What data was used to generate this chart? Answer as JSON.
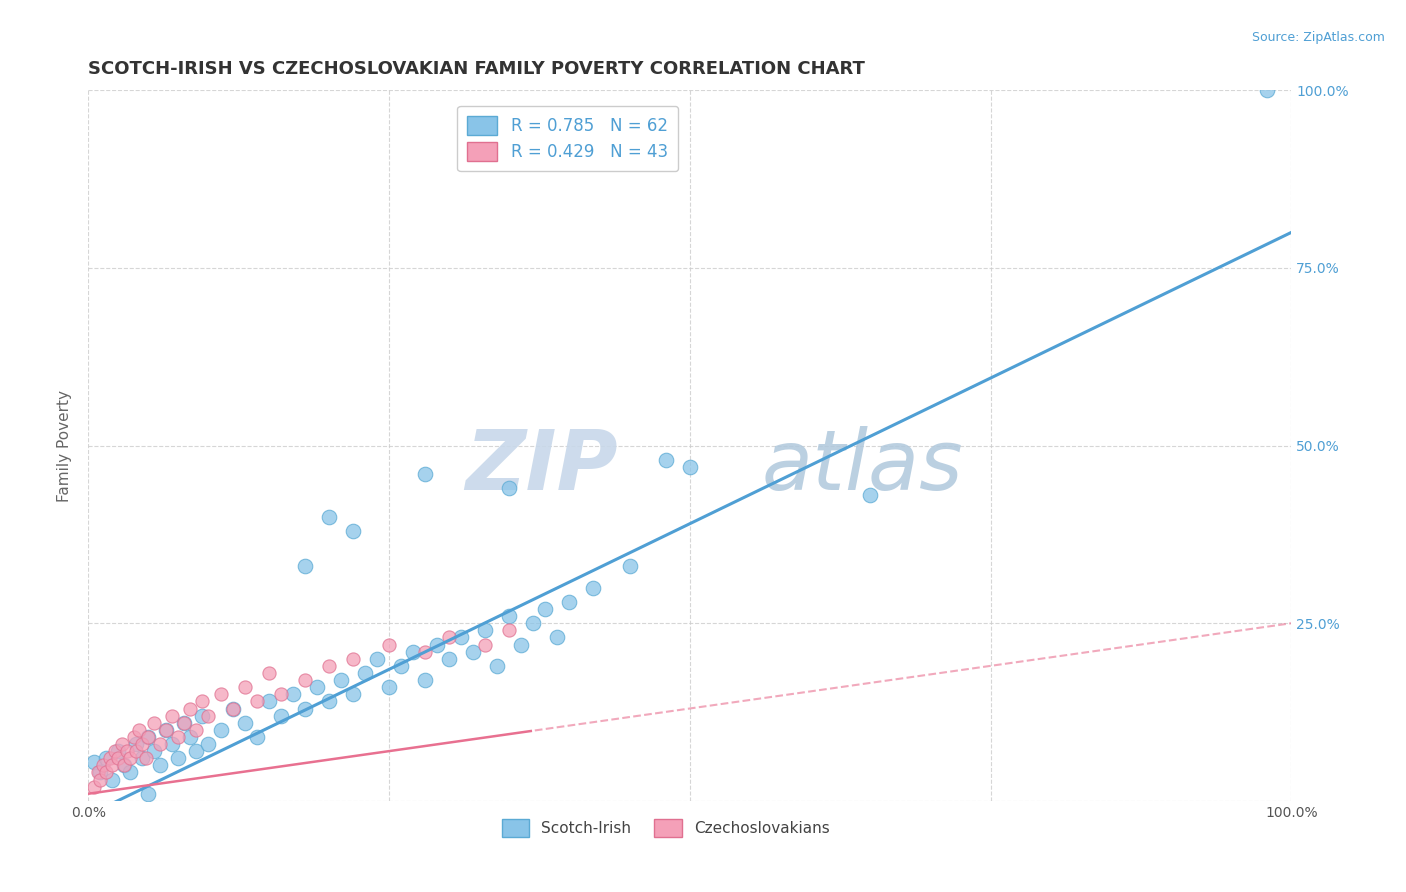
{
  "title": "SCOTCH-IRISH VS CZECHOSLOVAKIAN FAMILY POVERTY CORRELATION CHART",
  "source": "Source: ZipAtlas.com",
  "ylabel": "Family Poverty",
  "xlim": [
    0,
    1
  ],
  "ylim": [
    0,
    1
  ],
  "blue_color": "#4f9fd4",
  "blue_scatter_color": "#89c4e8",
  "blue_scatter_edge": "#5BAAD4",
  "pink_color": "#e87090",
  "pink_scatter_color": "#f4a0b8",
  "pink_scatter_edge": "#e07090",
  "watermark_zip_color": "#c8d8ea",
  "watermark_atlas_color": "#b0c8dc",
  "background_color": "#ffffff",
  "grid_color": "#cccccc",
  "title_fontsize": 13,
  "axis_label_fontsize": 11,
  "tick_fontsize": 10,
  "legend_fontsize": 12,
  "source_fontsize": 9,
  "R_blue": 0.785,
  "N_blue": 62,
  "R_pink": 0.429,
  "N_pink": 43,
  "blue_line_slope": 0.82,
  "blue_line_intercept": -0.02,
  "pink_line_slope": 0.24,
  "pink_line_intercept": 0.01,
  "blue_points": [
    [
      0.98,
      1.0
    ],
    [
      0.005,
      0.055
    ],
    [
      0.01,
      0.04
    ],
    [
      0.015,
      0.06
    ],
    [
      0.02,
      0.03
    ],
    [
      0.025,
      0.07
    ],
    [
      0.03,
      0.05
    ],
    [
      0.035,
      0.04
    ],
    [
      0.04,
      0.08
    ],
    [
      0.045,
      0.06
    ],
    [
      0.05,
      0.09
    ],
    [
      0.055,
      0.07
    ],
    [
      0.06,
      0.05
    ],
    [
      0.065,
      0.1
    ],
    [
      0.07,
      0.08
    ],
    [
      0.075,
      0.06
    ],
    [
      0.08,
      0.11
    ],
    [
      0.085,
      0.09
    ],
    [
      0.09,
      0.07
    ],
    [
      0.095,
      0.12
    ],
    [
      0.1,
      0.08
    ],
    [
      0.11,
      0.1
    ],
    [
      0.12,
      0.13
    ],
    [
      0.13,
      0.11
    ],
    [
      0.14,
      0.09
    ],
    [
      0.15,
      0.14
    ],
    [
      0.16,
      0.12
    ],
    [
      0.17,
      0.15
    ],
    [
      0.18,
      0.13
    ],
    [
      0.19,
      0.16
    ],
    [
      0.2,
      0.14
    ],
    [
      0.21,
      0.17
    ],
    [
      0.22,
      0.15
    ],
    [
      0.23,
      0.18
    ],
    [
      0.24,
      0.2
    ],
    [
      0.25,
      0.16
    ],
    [
      0.26,
      0.19
    ],
    [
      0.27,
      0.21
    ],
    [
      0.28,
      0.17
    ],
    [
      0.29,
      0.22
    ],
    [
      0.3,
      0.2
    ],
    [
      0.31,
      0.23
    ],
    [
      0.32,
      0.21
    ],
    [
      0.33,
      0.24
    ],
    [
      0.34,
      0.19
    ],
    [
      0.35,
      0.26
    ],
    [
      0.36,
      0.22
    ],
    [
      0.37,
      0.25
    ],
    [
      0.38,
      0.27
    ],
    [
      0.39,
      0.23
    ],
    [
      0.4,
      0.28
    ],
    [
      0.42,
      0.3
    ],
    [
      0.45,
      0.33
    ],
    [
      0.28,
      0.46
    ],
    [
      0.35,
      0.44
    ],
    [
      0.48,
      0.48
    ],
    [
      0.5,
      0.47
    ],
    [
      0.22,
      0.38
    ],
    [
      0.18,
      0.33
    ],
    [
      0.2,
      0.4
    ],
    [
      0.65,
      0.43
    ],
    [
      0.05,
      0.01
    ]
  ],
  "pink_points": [
    [
      0.005,
      0.02
    ],
    [
      0.008,
      0.04
    ],
    [
      0.01,
      0.03
    ],
    [
      0.012,
      0.05
    ],
    [
      0.015,
      0.04
    ],
    [
      0.018,
      0.06
    ],
    [
      0.02,
      0.05
    ],
    [
      0.022,
      0.07
    ],
    [
      0.025,
      0.06
    ],
    [
      0.028,
      0.08
    ],
    [
      0.03,
      0.05
    ],
    [
      0.032,
      0.07
    ],
    [
      0.035,
      0.06
    ],
    [
      0.038,
      0.09
    ],
    [
      0.04,
      0.07
    ],
    [
      0.042,
      0.1
    ],
    [
      0.045,
      0.08
    ],
    [
      0.048,
      0.06
    ],
    [
      0.05,
      0.09
    ],
    [
      0.055,
      0.11
    ],
    [
      0.06,
      0.08
    ],
    [
      0.065,
      0.1
    ],
    [
      0.07,
      0.12
    ],
    [
      0.075,
      0.09
    ],
    [
      0.08,
      0.11
    ],
    [
      0.085,
      0.13
    ],
    [
      0.09,
      0.1
    ],
    [
      0.095,
      0.14
    ],
    [
      0.1,
      0.12
    ],
    [
      0.11,
      0.15
    ],
    [
      0.12,
      0.13
    ],
    [
      0.13,
      0.16
    ],
    [
      0.14,
      0.14
    ],
    [
      0.15,
      0.18
    ],
    [
      0.16,
      0.15
    ],
    [
      0.18,
      0.17
    ],
    [
      0.2,
      0.19
    ],
    [
      0.22,
      0.2
    ],
    [
      0.25,
      0.22
    ],
    [
      0.28,
      0.21
    ],
    [
      0.3,
      0.23
    ],
    [
      0.33,
      0.22
    ],
    [
      0.35,
      0.24
    ]
  ]
}
